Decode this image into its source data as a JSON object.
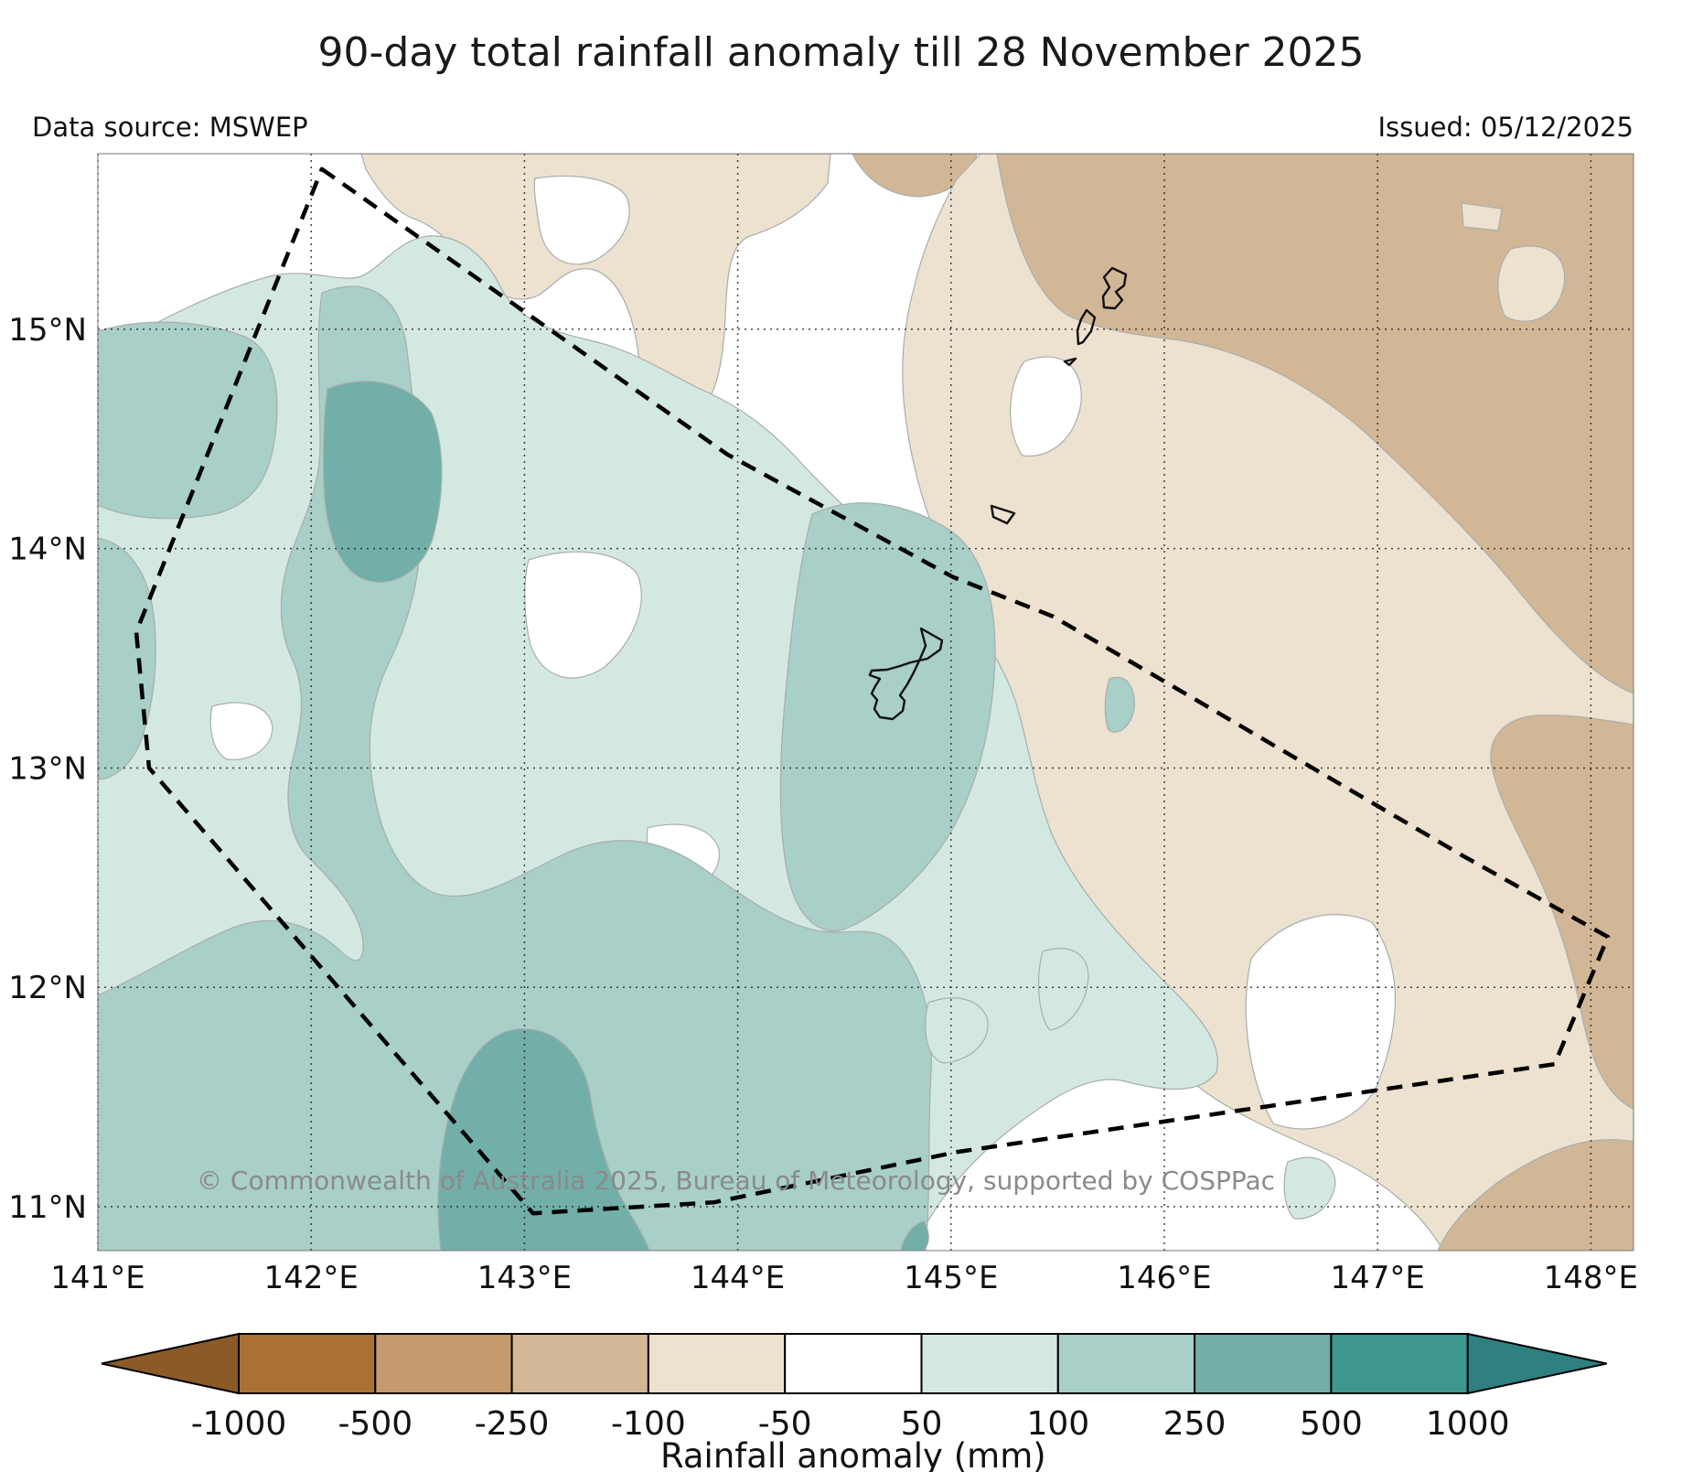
{
  "header": {
    "title": "90-day total rainfall anomaly till 28 November 2025",
    "data_source": "Data source: MSWEP",
    "issued": "Issued: 05/12/2025"
  },
  "map": {
    "copyright": "© Commonwealth of Australia 2025, Bureau of Meteorology, supported by COSPPac",
    "extent": {
      "lon_min": 141.0,
      "lon_max": 148.2,
      "lat_min": 10.8,
      "lat_max": 15.8
    },
    "lon_ticks": [
      {
        "value": 141,
        "label": "141°E"
      },
      {
        "value": 142,
        "label": "142°E"
      },
      {
        "value": 143,
        "label": "143°E"
      },
      {
        "value": 144,
        "label": "144°E"
      },
      {
        "value": 145,
        "label": "145°E"
      },
      {
        "value": 146,
        "label": "146°E"
      },
      {
        "value": 147,
        "label": "147°E"
      },
      {
        "value": 148,
        "label": "148°E"
      }
    ],
    "lat_ticks": [
      {
        "value": 15,
        "label": "15°N"
      },
      {
        "value": 14,
        "label": "14°N"
      },
      {
        "value": 13,
        "label": "13°N"
      },
      {
        "value": 12,
        "label": "12°N"
      },
      {
        "value": 11,
        "label": "11°N"
      }
    ]
  },
  "colorbar": {
    "label": "Rainfall anomaly (mm)",
    "tick_labels": [
      "-1000",
      "-500",
      "-250",
      "-100",
      "-50",
      "50",
      "100",
      "250",
      "500",
      "1000"
    ],
    "segments": [
      {
        "range": "-1000 to -500",
        "color": "#ab7134"
      },
      {
        "range": "-500 to -250",
        "color": "#c59a6c"
      },
      {
        "range": "-250 to -100",
        "color": "#d2b796"
      },
      {
        "range": "-100 to -50",
        "color": "#ede1d0"
      },
      {
        "range": "-50 to 50",
        "color": "#ffffff"
      },
      {
        "range": "50 to 100",
        "color": "#d4e8e2"
      },
      {
        "range": "100 to 250",
        "color": "#a8cfc8"
      },
      {
        "range": "250 to 500",
        "color": "#72afa8"
      },
      {
        "range": "500 to 1000",
        "color": "#3f968f"
      }
    ],
    "under_color": "#8c5a28",
    "over_color": "#2e8180"
  },
  "chart_data": {
    "type": "filled_contour_map",
    "title": "90-day total rainfall anomaly till 28 November 2025",
    "variable": "Rainfall anomaly (mm)",
    "period": "90 days ending 28 November 2025",
    "data_source": "MSWEP",
    "issued": "05/12/2025",
    "region": "Guam / Northern Mariana Islands area, 141–148.2°E, 10.8–15.8°N",
    "levels_mm": [
      -1000,
      -500,
      -250,
      -100,
      -50,
      50,
      100,
      250,
      500,
      1000
    ],
    "grid": true,
    "islands_outlined": [
      "Saipan",
      "Tinian",
      "Aguijan",
      "Rota",
      "Guam"
    ],
    "eez_boundary_lonlat": [
      [
        142.05,
        15.73
      ],
      [
        143.95,
        14.43
      ],
      [
        145.01,
        13.87
      ],
      [
        145.48,
        13.69
      ],
      [
        147.4,
        12.6
      ],
      [
        148.08,
        12.23
      ],
      [
        147.83,
        11.65
      ],
      [
        145.03,
        11.25
      ],
      [
        143.89,
        11.02
      ],
      [
        143.04,
        10.97
      ],
      [
        141.24,
        13.0
      ],
      [
        141.18,
        13.62
      ]
    ],
    "pattern_summary": {
      "west_and_central": "Positive anomaly, mostly 100-250 mm with pockets of 250-500 mm (north-centre ~142.2E/14.6N and bottom-centre ~143.2E/11.2N)",
      "northwest_and_fringes": "50-100 mm positive fringe around the wet region",
      "northeast_quadrant": "Negative anomaly -250 to -100 mm covering the Mariana Islands (Saipan/Tinian) and top-right corner",
      "east": "Light negative band -100 to -50 mm along the eastern third, with near-zero (white) band between wet and dry regions",
      "southeast": "Small isolated 50-100 mm patches near 145-147E, 11-12N"
    }
  }
}
